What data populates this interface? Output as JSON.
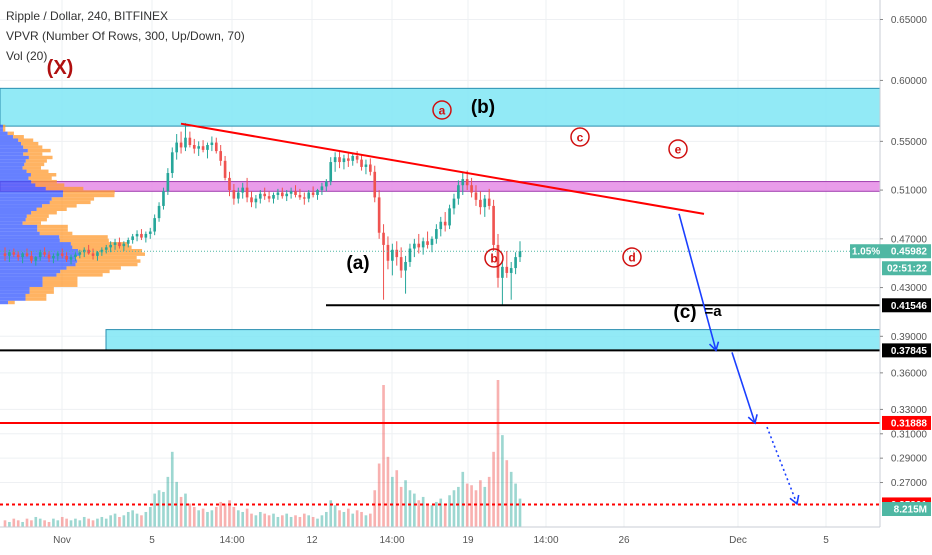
{
  "header": {
    "symbol_line": "Ripple / Dollar, 240, BITFINEX",
    "indicator_vpvr": "VPVR (Number Of Rows, 300, Up/Down, 70)",
    "indicator_vol": "Vol (20)"
  },
  "colors": {
    "up": "#26a69a",
    "down": "#ef5350",
    "zone_cyan": "#7fe6f5",
    "zone_magenta": "#e58be6",
    "trend": "#ff0000",
    "projection": "#1a3fff",
    "support_black": "#000000",
    "horizontal_red": "#ff0000",
    "last_price_tag": "#4fb7a3"
  },
  "chart_data": {
    "type": "candlestick",
    "xlabel": "",
    "ylabel": "",
    "ylim": [
      0.2335,
      0.666
    ],
    "x_ticks": [
      "Nov",
      "5",
      "14:00",
      "12",
      "14:00",
      "19",
      "14:00",
      "26",
      "Dec",
      "5"
    ],
    "y_ticks": [
      "0.65000",
      "0.60000",
      "0.55000",
      "0.51000",
      "0.47000",
      "0.43000",
      "0.39000",
      "0.36000",
      "0.33000",
      "0.31000",
      "0.29000",
      "0.27000"
    ],
    "price_tags": [
      {
        "value": 0.45982,
        "label": "0.45982",
        "style": "last"
      },
      {
        "value": 0.41546,
        "label": "0.41546",
        "style": "black"
      },
      {
        "value": 0.37845,
        "label": "0.37845",
        "style": "black"
      },
      {
        "value": 0.31888,
        "label": "0.31888",
        "style": "red"
      },
      {
        "value": 0.25201,
        "label": "0.25201",
        "style": "red"
      }
    ],
    "last_change": "1.05%",
    "countdown": "02:51:22",
    "volume_label": "8.215M",
    "zones": [
      {
        "y_top": 0.5935,
        "y_bottom": 0.5625,
        "color": "cyan"
      },
      {
        "y_top": 0.517,
        "y_bottom": 0.509,
        "color": "magenta"
      },
      {
        "y_top": 0.3955,
        "y_bottom": 0.3785,
        "color": "cyan"
      }
    ],
    "wave_labels": {
      "X": "(X)",
      "a_paren": "(a)",
      "b_paren": "(b)",
      "c_eq": "(c)",
      "eq_a": "=a",
      "a": "a",
      "b": "b",
      "c": "c",
      "d": "d",
      "e": "e"
    },
    "candles": [
      [
        0.458,
        0.463,
        0.452,
        0.456
      ],
      [
        0.456,
        0.461,
        0.451,
        0.459
      ],
      [
        0.459,
        0.462,
        0.455,
        0.457
      ],
      [
        0.457,
        0.46,
        0.452,
        0.455
      ],
      [
        0.455,
        0.459,
        0.45,
        0.458
      ],
      [
        0.458,
        0.462,
        0.455,
        0.456
      ],
      [
        0.456,
        0.46,
        0.45,
        0.452
      ],
      [
        0.452,
        0.456,
        0.448,
        0.455
      ],
      [
        0.455,
        0.461,
        0.452,
        0.459
      ],
      [
        0.459,
        0.463,
        0.455,
        0.457
      ],
      [
        0.457,
        0.46,
        0.451,
        0.454
      ],
      [
        0.454,
        0.458,
        0.45,
        0.456
      ],
      [
        0.456,
        0.46,
        0.452,
        0.458
      ],
      [
        0.458,
        0.462,
        0.454,
        0.456
      ],
      [
        0.456,
        0.459,
        0.451,
        0.453
      ],
      [
        0.453,
        0.457,
        0.449,
        0.455
      ],
      [
        0.455,
        0.459,
        0.452,
        0.457
      ],
      [
        0.457,
        0.461,
        0.454,
        0.459
      ],
      [
        0.459,
        0.463,
        0.455,
        0.461
      ],
      [
        0.461,
        0.465,
        0.457,
        0.458
      ],
      [
        0.458,
        0.462,
        0.453,
        0.456
      ],
      [
        0.456,
        0.46,
        0.452,
        0.459
      ],
      [
        0.459,
        0.463,
        0.456,
        0.461
      ],
      [
        0.461,
        0.465,
        0.458,
        0.463
      ],
      [
        0.463,
        0.468,
        0.459,
        0.465
      ],
      [
        0.465,
        0.47,
        0.461,
        0.467
      ],
      [
        0.467,
        0.471,
        0.462,
        0.464
      ],
      [
        0.464,
        0.468,
        0.46,
        0.466
      ],
      [
        0.466,
        0.471,
        0.463,
        0.469
      ],
      [
        0.469,
        0.474,
        0.466,
        0.472
      ],
      [
        0.472,
        0.477,
        0.468,
        0.474
      ],
      [
        0.474,
        0.478,
        0.469,
        0.471
      ],
      [
        0.471,
        0.476,
        0.467,
        0.474
      ],
      [
        0.474,
        0.479,
        0.47,
        0.476
      ],
      [
        0.476,
        0.49,
        0.473,
        0.487
      ],
      [
        0.487,
        0.5,
        0.484,
        0.497
      ],
      [
        0.497,
        0.512,
        0.494,
        0.509
      ],
      [
        0.509,
        0.528,
        0.506,
        0.524
      ],
      [
        0.524,
        0.545,
        0.52,
        0.541
      ],
      [
        0.541,
        0.556,
        0.535,
        0.549
      ],
      [
        0.549,
        0.558,
        0.54,
        0.545
      ],
      [
        0.545,
        0.565,
        0.542,
        0.553
      ],
      [
        0.553,
        0.558,
        0.545,
        0.547
      ],
      [
        0.547,
        0.552,
        0.54,
        0.544
      ],
      [
        0.544,
        0.55,
        0.538,
        0.546
      ],
      [
        0.546,
        0.551,
        0.541,
        0.543
      ],
      [
        0.543,
        0.549,
        0.536,
        0.547
      ],
      [
        0.547,
        0.554,
        0.542,
        0.549
      ],
      [
        0.549,
        0.553,
        0.54,
        0.542
      ],
      [
        0.542,
        0.547,
        0.53,
        0.534
      ],
      [
        0.534,
        0.538,
        0.518,
        0.52
      ],
      [
        0.52,
        0.525,
        0.505,
        0.51
      ],
      [
        0.51,
        0.515,
        0.498,
        0.503
      ],
      [
        0.503,
        0.512,
        0.499,
        0.508
      ],
      [
        0.508,
        0.516,
        0.503,
        0.512
      ],
      [
        0.512,
        0.52,
        0.5,
        0.504
      ],
      [
        0.504,
        0.509,
        0.496,
        0.5
      ],
      [
        0.5,
        0.506,
        0.495,
        0.503
      ],
      [
        0.503,
        0.51,
        0.499,
        0.507
      ],
      [
        0.507,
        0.512,
        0.502,
        0.505
      ],
      [
        0.505,
        0.509,
        0.5,
        0.503
      ],
      [
        0.503,
        0.508,
        0.499,
        0.506
      ],
      [
        0.506,
        0.511,
        0.502,
        0.508
      ],
      [
        0.508,
        0.512,
        0.503,
        0.505
      ],
      [
        0.505,
        0.51,
        0.501,
        0.507
      ],
      [
        0.507,
        0.512,
        0.503,
        0.509
      ],
      [
        0.509,
        0.514,
        0.504,
        0.506
      ],
      [
        0.506,
        0.511,
        0.502,
        0.504
      ],
      [
        0.504,
        0.508,
        0.498,
        0.503
      ],
      [
        0.503,
        0.51,
        0.5,
        0.508
      ],
      [
        0.508,
        0.513,
        0.504,
        0.506
      ],
      [
        0.506,
        0.511,
        0.502,
        0.51
      ],
      [
        0.51,
        0.516,
        0.506,
        0.513
      ],
      [
        0.513,
        0.519,
        0.509,
        0.517
      ],
      [
        0.517,
        0.537,
        0.514,
        0.533
      ],
      [
        0.533,
        0.541,
        0.525,
        0.537
      ],
      [
        0.537,
        0.542,
        0.528,
        0.533
      ],
      [
        0.533,
        0.539,
        0.527,
        0.536
      ],
      [
        0.536,
        0.541,
        0.529,
        0.534
      ],
      [
        0.534,
        0.54,
        0.53,
        0.538
      ],
      [
        0.538,
        0.542,
        0.532,
        0.535
      ],
      [
        0.535,
        0.539,
        0.526,
        0.529
      ],
      [
        0.529,
        0.535,
        0.523,
        0.531
      ],
      [
        0.531,
        0.536,
        0.522,
        0.525
      ],
      [
        0.525,
        0.53,
        0.5,
        0.504
      ],
      [
        0.504,
        0.51,
        0.47,
        0.475
      ],
      [
        0.475,
        0.482,
        0.42,
        0.465
      ],
      [
        0.465,
        0.472,
        0.445,
        0.452
      ],
      [
        0.452,
        0.466,
        0.44,
        0.461
      ],
      [
        0.461,
        0.468,
        0.448,
        0.455
      ],
      [
        0.455,
        0.463,
        0.438,
        0.444
      ],
      [
        0.444,
        0.456,
        0.425,
        0.451
      ],
      [
        0.451,
        0.466,
        0.447,
        0.462
      ],
      [
        0.462,
        0.47,
        0.455,
        0.466
      ],
      [
        0.466,
        0.474,
        0.458,
        0.463
      ],
      [
        0.463,
        0.471,
        0.457,
        0.468
      ],
      [
        0.468,
        0.476,
        0.462,
        0.465
      ],
      [
        0.465,
        0.472,
        0.459,
        0.47
      ],
      [
        0.47,
        0.482,
        0.466,
        0.478
      ],
      [
        0.478,
        0.488,
        0.472,
        0.484
      ],
      [
        0.484,
        0.492,
        0.476,
        0.481
      ],
      [
        0.481,
        0.498,
        0.478,
        0.495
      ],
      [
        0.495,
        0.507,
        0.49,
        0.503
      ],
      [
        0.503,
        0.518,
        0.498,
        0.514
      ],
      [
        0.514,
        0.525,
        0.506,
        0.519
      ],
      [
        0.519,
        0.526,
        0.51,
        0.514
      ],
      [
        0.514,
        0.52,
        0.504,
        0.508
      ],
      [
        0.508,
        0.514,
        0.497,
        0.502
      ],
      [
        0.502,
        0.509,
        0.49,
        0.496
      ],
      [
        0.496,
        0.506,
        0.488,
        0.503
      ],
      [
        0.503,
        0.511,
        0.494,
        0.497
      ],
      [
        0.497,
        0.502,
        0.46,
        0.465
      ],
      [
        0.465,
        0.474,
        0.43,
        0.438
      ],
      [
        0.438,
        0.452,
        0.415,
        0.447
      ],
      [
        0.447,
        0.46,
        0.438,
        0.442
      ],
      [
        0.442,
        0.451,
        0.42,
        0.446
      ],
      [
        0.446,
        0.459,
        0.441,
        0.455
      ],
      [
        0.455,
        0.468,
        0.451,
        0.46
      ]
    ],
    "volume": [
      0.04,
      0.03,
      0.05,
      0.04,
      0.03,
      0.05,
      0.04,
      0.06,
      0.05,
      0.04,
      0.03,
      0.05,
      0.04,
      0.06,
      0.05,
      0.04,
      0.05,
      0.04,
      0.06,
      0.05,
      0.04,
      0.05,
      0.06,
      0.05,
      0.07,
      0.08,
      0.06,
      0.07,
      0.09,
      0.1,
      0.08,
      0.07,
      0.09,
      0.12,
      0.2,
      0.22,
      0.21,
      0.3,
      0.45,
      0.27,
      0.18,
      0.2,
      0.14,
      0.12,
      0.1,
      0.11,
      0.09,
      0.1,
      0.12,
      0.15,
      0.14,
      0.16,
      0.12,
      0.1,
      0.09,
      0.11,
      0.08,
      0.07,
      0.09,
      0.08,
      0.07,
      0.08,
      0.06,
      0.07,
      0.08,
      0.06,
      0.07,
      0.06,
      0.08,
      0.07,
      0.06,
      0.05,
      0.07,
      0.09,
      0.16,
      0.13,
      0.1,
      0.09,
      0.11,
      0.08,
      0.1,
      0.09,
      0.07,
      0.08,
      0.22,
      0.38,
      0.85,
      0.42,
      0.3,
      0.34,
      0.24,
      0.28,
      0.22,
      0.2,
      0.16,
      0.18,
      0.14,
      0.13,
      0.15,
      0.17,
      0.14,
      0.19,
      0.22,
      0.24,
      0.33,
      0.26,
      0.25,
      0.22,
      0.28,
      0.24,
      0.3,
      0.45,
      0.88,
      0.55,
      0.4,
      0.33,
      0.26,
      0.17
    ]
  }
}
